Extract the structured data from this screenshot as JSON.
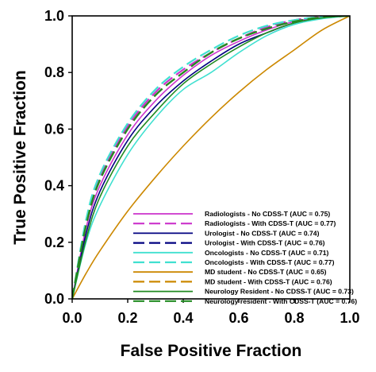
{
  "chart_data": {
    "type": "line",
    "title": "",
    "xlabel": "False Positive Fraction",
    "ylabel": "True Positive Fraction",
    "xlim": [
      0.0,
      1.0
    ],
    "ylim": [
      0.0,
      1.0
    ],
    "xticks": [
      "0.0",
      "0.2",
      "0.4",
      "0.6",
      "0.8",
      "1.0"
    ],
    "yticks": [
      "0.0",
      "0.2",
      "0.4",
      "0.6",
      "0.8",
      "1.0"
    ],
    "grid": false,
    "legend_position": "bottom-right",
    "x": [
      0.0,
      0.05,
      0.1,
      0.2,
      0.3,
      0.4,
      0.5,
      0.6,
      0.7,
      0.8,
      0.9,
      1.0
    ],
    "series": [
      {
        "name": "Radiologists - No CDSS-T (AUC = 0.75)",
        "color": "#cc33cc",
        "dash": "solid",
        "values": [
          0.0,
          0.25,
          0.4,
          0.58,
          0.7,
          0.79,
          0.86,
          0.91,
          0.95,
          0.98,
          0.995,
          1.0
        ]
      },
      {
        "name": "Radiologists - With CDSS-T (AUC = 0.77)",
        "color": "#cc33cc",
        "dash": "dashed",
        "values": [
          0.0,
          0.27,
          0.43,
          0.61,
          0.73,
          0.81,
          0.87,
          0.92,
          0.96,
          0.985,
          0.997,
          1.0
        ]
      },
      {
        "name": "Urologist - No CDSS-T (AUC = 0.74)",
        "color": "#000080",
        "dash": "solid",
        "values": [
          0.0,
          0.23,
          0.38,
          0.56,
          0.68,
          0.77,
          0.84,
          0.9,
          0.94,
          0.975,
          0.993,
          1.0
        ]
      },
      {
        "name": "Urologist - With CDSS-T (AUC = 0.76)",
        "color": "#000080",
        "dash": "dashed",
        "values": [
          0.0,
          0.26,
          0.42,
          0.6,
          0.72,
          0.8,
          0.87,
          0.92,
          0.955,
          0.98,
          0.995,
          1.0
        ]
      },
      {
        "name": "Oncologists - No CDSS-T (AUC = 0.71)",
        "color": "#40e0d0",
        "dash": "solid",
        "values": [
          0.0,
          0.2,
          0.33,
          0.51,
          0.64,
          0.74,
          0.8,
          0.87,
          0.93,
          0.97,
          0.99,
          1.0
        ]
      },
      {
        "name": "Oncologists - With CDSS-T (AUC = 0.77)",
        "color": "#40e0d0",
        "dash": "dashed",
        "values": [
          0.0,
          0.28,
          0.44,
          0.62,
          0.74,
          0.82,
          0.88,
          0.93,
          0.965,
          0.985,
          0.997,
          1.0
        ]
      },
      {
        "name": "MD student - No CDSS-T (AUC = 0.65)",
        "color": "#cc8800",
        "dash": "solid",
        "values": [
          0.0,
          0.09,
          0.17,
          0.31,
          0.43,
          0.54,
          0.64,
          0.73,
          0.81,
          0.88,
          0.95,
          1.0
        ]
      },
      {
        "name": "MD student - With CDSS-T (AUC = 0.76)",
        "color": "#cc8800",
        "dash": "dashed",
        "values": [
          0.0,
          0.26,
          0.42,
          0.6,
          0.72,
          0.8,
          0.87,
          0.92,
          0.955,
          0.98,
          0.995,
          1.0
        ]
      },
      {
        "name": "Neurology Resident - No CDSS-T (AUC = 0.73)",
        "color": "#228b22",
        "dash": "solid",
        "values": [
          0.0,
          0.21,
          0.36,
          0.54,
          0.66,
          0.76,
          0.83,
          0.89,
          0.94,
          0.975,
          0.993,
          1.0
        ]
      },
      {
        "name": "Neurology resident - With CDSS-T (AUC = 0.76)",
        "color": "#228b22",
        "dash": "dashed",
        "values": [
          0.0,
          0.26,
          0.42,
          0.6,
          0.72,
          0.8,
          0.87,
          0.92,
          0.955,
          0.98,
          0.995,
          1.0
        ]
      }
    ]
  }
}
